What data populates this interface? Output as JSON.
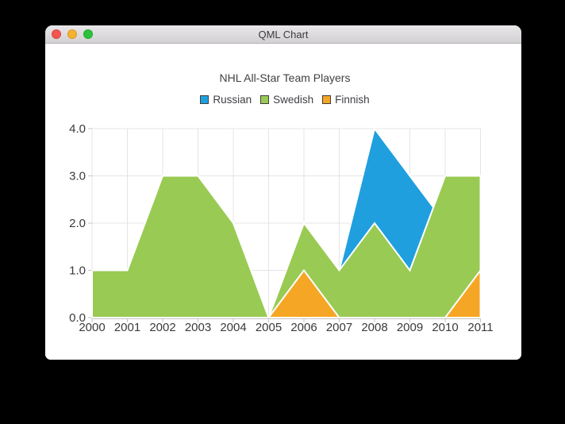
{
  "window": {
    "title": "QML Chart",
    "traffic_lights": [
      {
        "name": "close",
        "color": "#f5554f"
      },
      {
        "name": "minimize",
        "color": "#f6b22e"
      },
      {
        "name": "zoom",
        "color": "#2cc23c"
      }
    ]
  },
  "chart_data": {
    "type": "area",
    "title": "NHL All-Star Team Players",
    "x": [
      2000,
      2001,
      2002,
      2003,
      2004,
      2005,
      2006,
      2007,
      2008,
      2009,
      2010,
      2011
    ],
    "x_ticks": [
      "2000",
      "2001",
      "2002",
      "2003",
      "2004",
      "2005",
      "2006",
      "2007",
      "2008",
      "2009",
      "2010",
      "2011"
    ],
    "y_ticks": [
      "0.0",
      "1.0",
      "2.0",
      "3.0",
      "4.0"
    ],
    "xlim": [
      2000,
      2011
    ],
    "ylim": [
      0,
      4
    ],
    "grid": true,
    "legend_position": "top",
    "series": [
      {
        "name": "Russian",
        "color": "#209fdf",
        "values": [
          1,
          1,
          1,
          1,
          1,
          0,
          1,
          1,
          4,
          3,
          2,
          1
        ]
      },
      {
        "name": "Swedish",
        "color": "#99ca53",
        "values": [
          1,
          1,
          3,
          3,
          2,
          0,
          2,
          1,
          2,
          1,
          3,
          3
        ]
      },
      {
        "name": "Finnish",
        "color": "#f6a625",
        "values": [
          0,
          0,
          0,
          0,
          0,
          0,
          1,
          0,
          0,
          0,
          0,
          1
        ]
      }
    ],
    "border_color": "#ffffff",
    "grid_color": "#e4e4e4",
    "axis_color": "#c6c6c6",
    "text_color": "#3a3a3e"
  }
}
